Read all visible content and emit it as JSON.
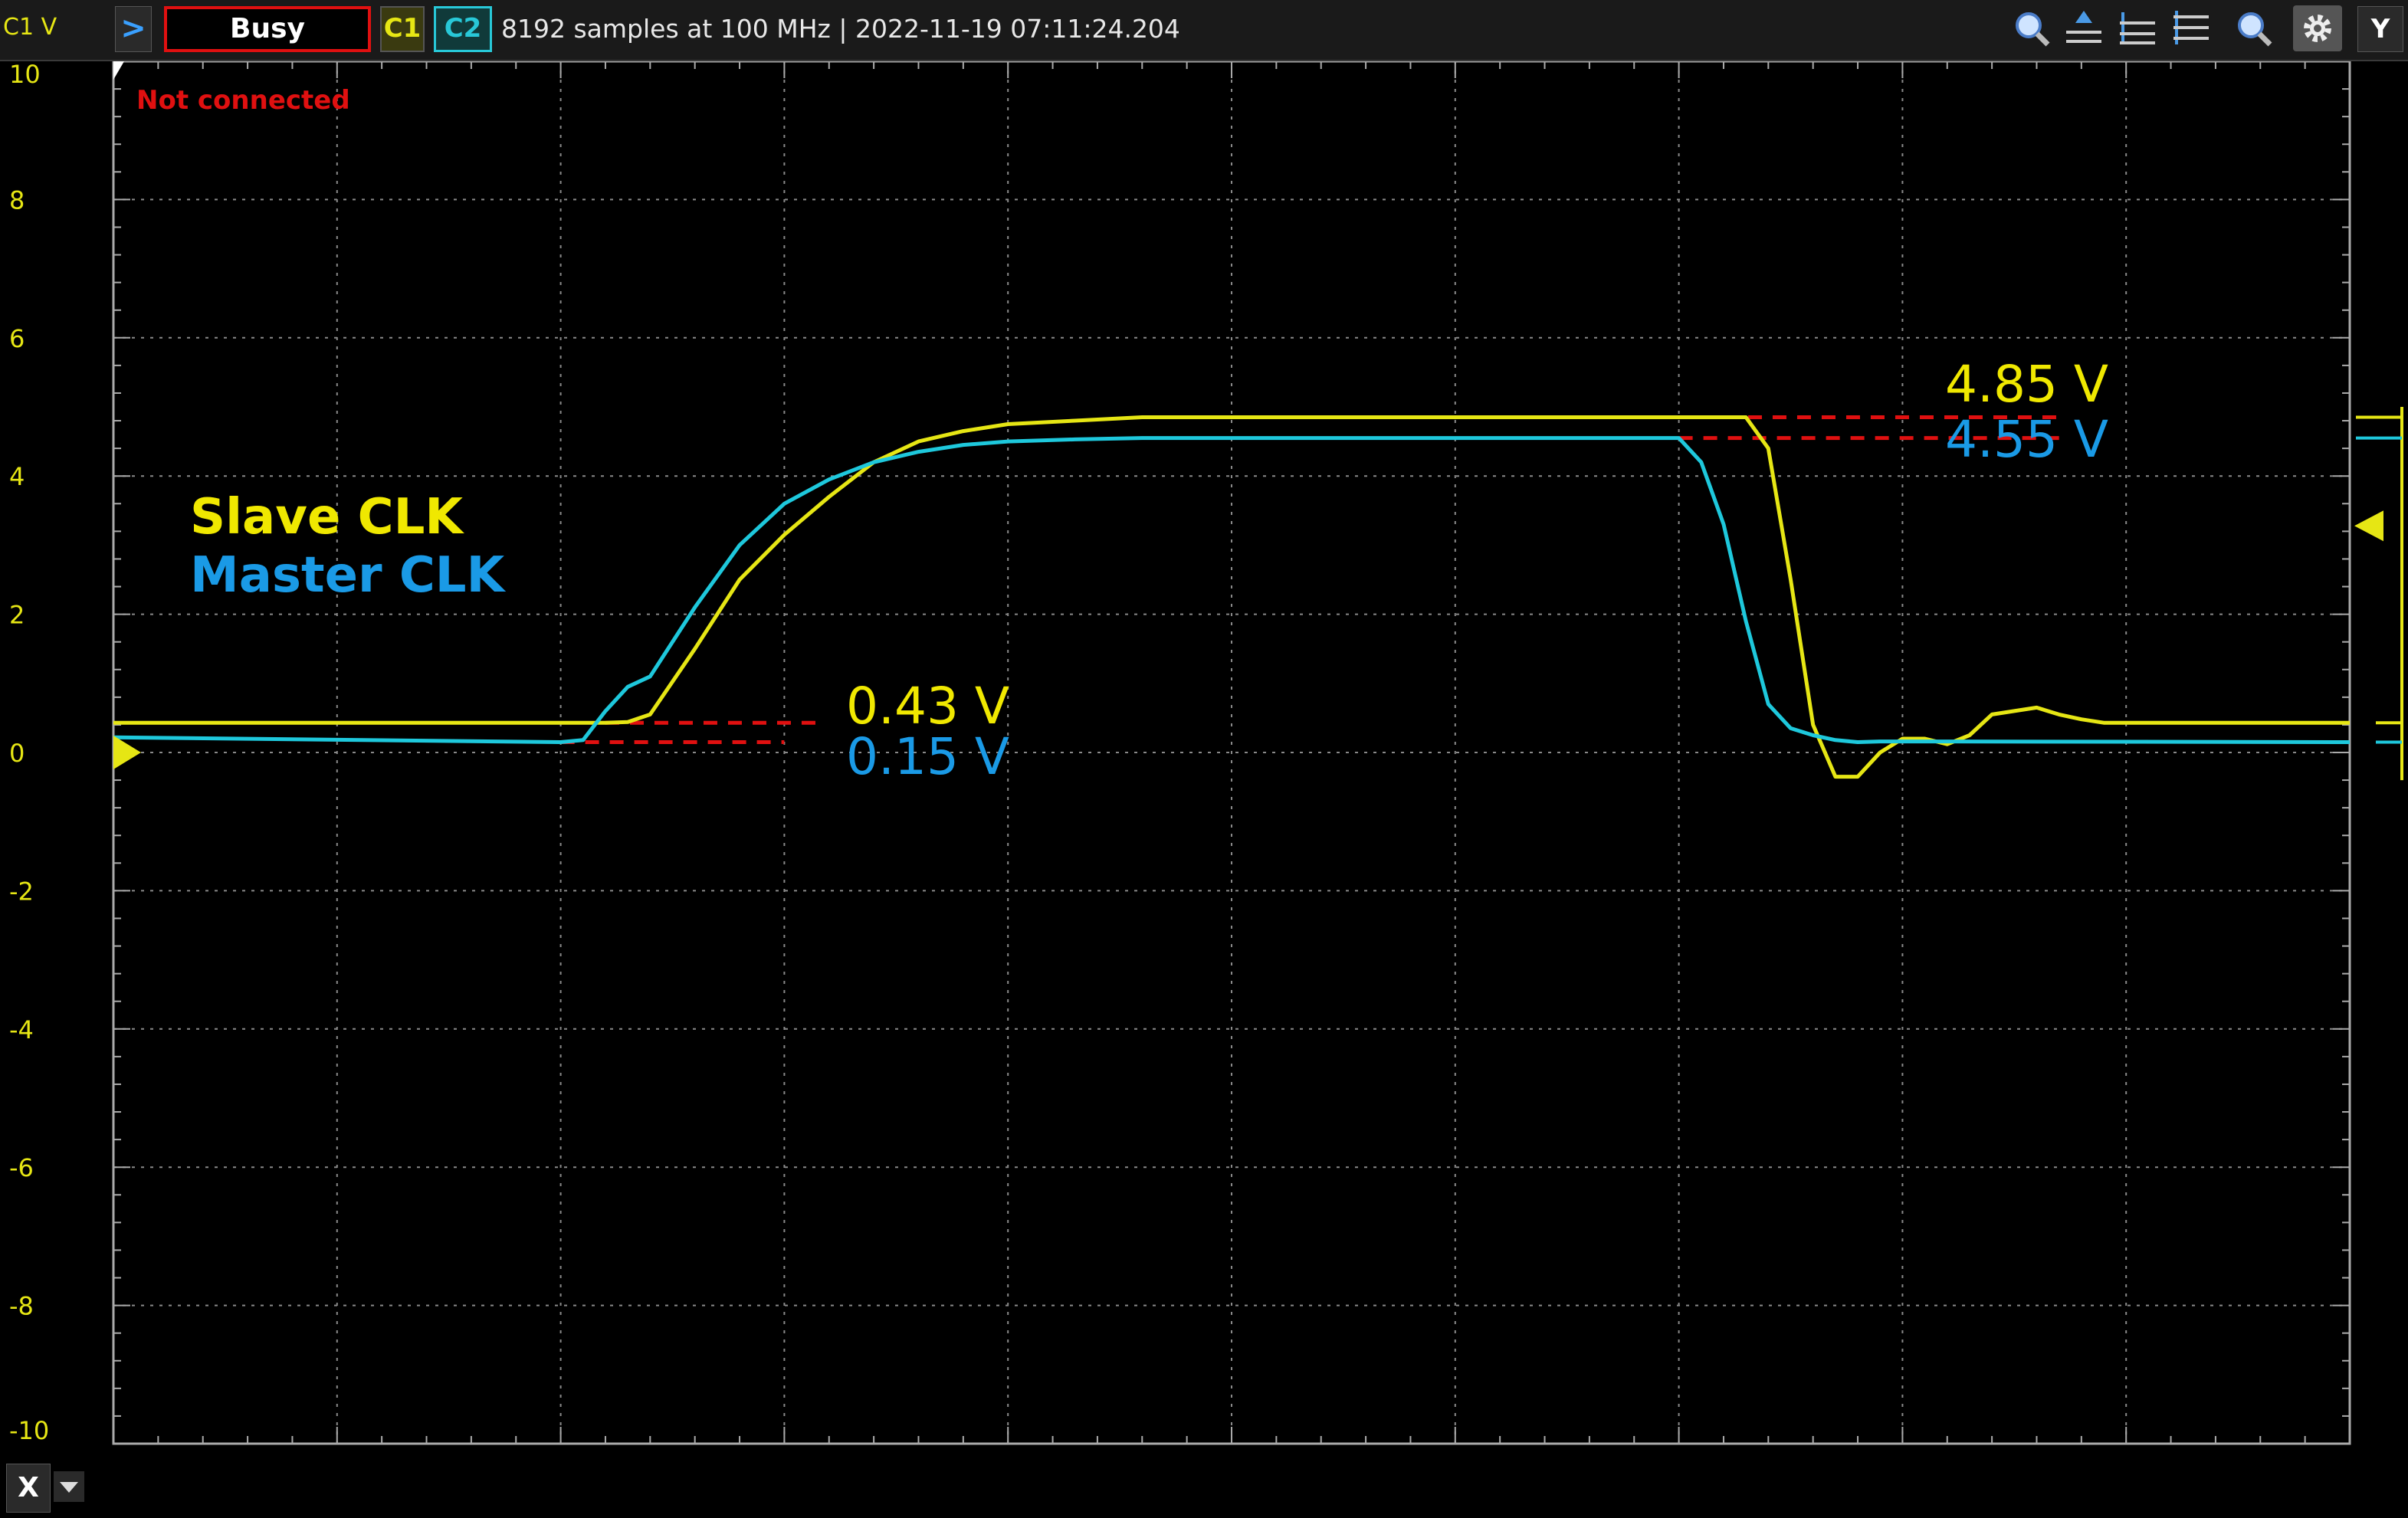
{
  "toolbar": {
    "channel_unit": "C1 V",
    "status": "Busy",
    "c1_label": "C1",
    "c2_label": "C2",
    "acquisition_info": "8192 samples at 100 MHz | 2022-11-19 07:11:24.204",
    "icons": [
      "zoom-icon",
      "cursor-up-icon",
      "cursor-level-icon",
      "cursor-down-icon",
      "zoom-out-icon",
      "settings-icon"
    ],
    "y_button": "Y"
  },
  "x_button": "X",
  "chart_data": {
    "type": "line",
    "x_unit": "us",
    "xlim": [
      6.9,
      16.9
    ],
    "ylim": [
      -10,
      10
    ],
    "grid": true,
    "x_ticks": [
      "6.9 us",
      "7.9 us",
      "8.9 us",
      "9.9 us",
      "10.9 us",
      "11.9 us",
      "12.9 us",
      "13.9 us",
      "14.9 us",
      "15.9 us",
      "16.9 us"
    ],
    "y_ticks": [
      "10",
      "8",
      "6",
      "4",
      "2",
      "0",
      "-2",
      "-4",
      "-6",
      "-8",
      "-10"
    ],
    "status_text": "Not connected",
    "colors": {
      "c1": "#e6e614",
      "c2": "#1ec8dc",
      "annotation_yellow": "#f0e800",
      "annotation_blue": "#1a9ae6",
      "marker": "#e01010",
      "grid": "#8a8a8a"
    },
    "legend": [
      "Slave CLK",
      "Master CLK"
    ],
    "annotations": [
      "4.85 V",
      "4.55 V",
      "0.43 V",
      "0.15 V"
    ],
    "series": [
      {
        "name": "Slave CLK",
        "color": "#e6e614",
        "x": [
          6.9,
          9.1,
          9.2,
          9.3,
          9.5,
          9.7,
          9.9,
          10.1,
          10.3,
          10.5,
          10.7,
          10.9,
          11.2,
          11.5,
          14.1,
          14.2,
          14.3,
          14.4,
          14.5,
          14.6,
          14.7,
          14.8,
          14.9,
          15.0,
          15.1,
          15.2,
          15.3,
          15.4,
          15.5,
          15.6,
          15.7,
          15.8,
          16.0,
          16.9
        ],
        "y": [
          0.43,
          0.43,
          0.44,
          0.55,
          1.5,
          2.5,
          3.15,
          3.7,
          4.2,
          4.5,
          4.65,
          4.75,
          4.8,
          4.85,
          4.85,
          4.85,
          4.4,
          2.5,
          0.4,
          -0.35,
          -0.35,
          0.0,
          0.2,
          0.2,
          0.12,
          0.25,
          0.55,
          0.6,
          0.65,
          0.55,
          0.48,
          0.43,
          0.43,
          0.43
        ]
      },
      {
        "name": "Master CLK",
        "color": "#1ec8dc",
        "x": [
          6.9,
          8.9,
          9.0,
          9.1,
          9.2,
          9.3,
          9.5,
          9.7,
          9.9,
          10.1,
          10.3,
          10.5,
          10.7,
          10.9,
          11.2,
          11.5,
          13.9,
          14.0,
          14.1,
          14.2,
          14.3,
          14.4,
          14.5,
          14.6,
          14.7,
          14.8,
          15.0,
          16.9
        ],
        "y": [
          0.22,
          0.15,
          0.18,
          0.6,
          0.95,
          1.1,
          2.1,
          3.0,
          3.6,
          3.95,
          4.2,
          4.35,
          4.45,
          4.5,
          4.53,
          4.55,
          4.55,
          4.2,
          3.3,
          1.9,
          0.7,
          0.35,
          0.25,
          0.18,
          0.15,
          0.16,
          0.16,
          0.15
        ]
      }
    ]
  }
}
